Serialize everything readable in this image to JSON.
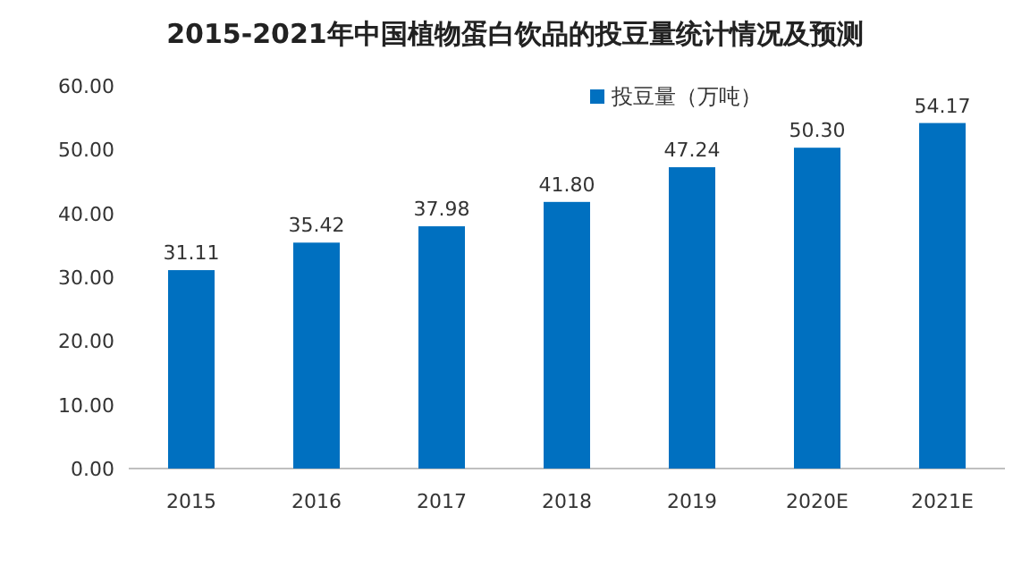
{
  "chart_data": {
    "type": "bar",
    "title": "2015-2021年中国植物蛋白饮品的投豆量统计情况及预测",
    "categories": [
      "2015",
      "2016",
      "2017",
      "2018",
      "2019",
      "2020E",
      "2021E"
    ],
    "series": [
      {
        "name": "投豆量（万吨）",
        "color": "#0070c0",
        "values": [
          31.11,
          35.42,
          37.98,
          41.8,
          47.24,
          50.3,
          54.17
        ]
      }
    ],
    "value_labels": [
      "31.11",
      "35.42",
      "37.98",
      "41.80",
      "47.24",
      "50.30",
      "54.17"
    ],
    "ylim": [
      0,
      60
    ],
    "yticks": [
      {
        "value": 0,
        "label": "0.00"
      },
      {
        "value": 10,
        "label": "10.00"
      },
      {
        "value": 20,
        "label": "20.00"
      },
      {
        "value": 30,
        "label": "30.00"
      },
      {
        "value": 40,
        "label": "40.00"
      },
      {
        "value": 50,
        "label": "50.00"
      },
      {
        "value": 60,
        "label": "60.00"
      }
    ],
    "legend": "top right"
  }
}
